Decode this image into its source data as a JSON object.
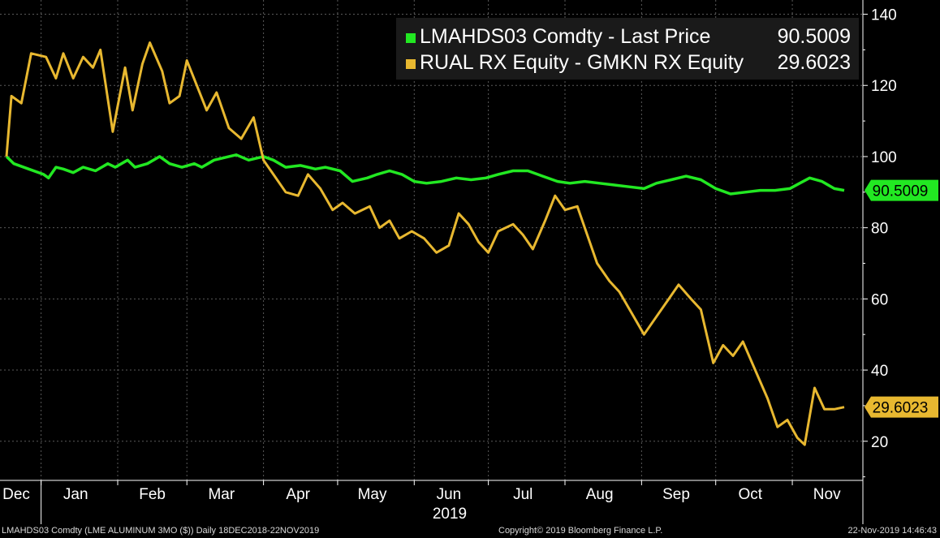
{
  "chart_data": {
    "type": "line",
    "xlabel": "",
    "ylabel": "",
    "ylim": [
      9,
      144
    ],
    "yticks": [
      20,
      40,
      60,
      80,
      100,
      120,
      140
    ],
    "x_range": [
      "2018-12-18",
      "2019-11-22"
    ],
    "year_label": "2019",
    "month_labels": [
      {
        "label": "Dec",
        "date": "2018-12-10"
      },
      {
        "label": "Jan",
        "date": "2019-01-15"
      },
      {
        "label": "Feb",
        "date": "2019-02-15"
      },
      {
        "label": "Mar",
        "date": "2019-03-15"
      },
      {
        "label": "Apr",
        "date": "2019-04-15"
      },
      {
        "label": "May",
        "date": "2019-05-15"
      },
      {
        "label": "Jun",
        "date": "2019-06-15"
      },
      {
        "label": "Jul",
        "date": "2019-07-15"
      },
      {
        "label": "Aug",
        "date": "2019-08-15"
      },
      {
        "label": "Sep",
        "date": "2019-09-15"
      },
      {
        "label": "Oct",
        "date": "2019-10-15"
      },
      {
        "label": "Nov",
        "date": "2019-11-15"
      }
    ],
    "grid": true,
    "legend_position": "top-right",
    "series": [
      {
        "name": "LMAHDS03 Comdty - Last Price",
        "last_value_label": "90.5009",
        "color": "#22e822",
        "points": [
          [
            "2018-12-18",
            100
          ],
          [
            "2018-12-21",
            98
          ],
          [
            "2018-12-27",
            96.5
          ],
          [
            "2019-01-02",
            95
          ],
          [
            "2019-01-04",
            94
          ],
          [
            "2019-01-07",
            97
          ],
          [
            "2019-01-10",
            96.5
          ],
          [
            "2019-01-14",
            95.5
          ],
          [
            "2019-01-18",
            97
          ],
          [
            "2019-01-23",
            96
          ],
          [
            "2019-01-28",
            98
          ],
          [
            "2019-01-31",
            97
          ],
          [
            "2019-02-05",
            99
          ],
          [
            "2019-02-08",
            97
          ],
          [
            "2019-02-13",
            98
          ],
          [
            "2019-02-18",
            100
          ],
          [
            "2019-02-22",
            98
          ],
          [
            "2019-02-27",
            97
          ],
          [
            "2019-03-04",
            98
          ],
          [
            "2019-03-07",
            97
          ],
          [
            "2019-03-12",
            99
          ],
          [
            "2019-03-18",
            100
          ],
          [
            "2019-03-21",
            100.5
          ],
          [
            "2019-03-26",
            99
          ],
          [
            "2019-04-01",
            100
          ],
          [
            "2019-04-05",
            99
          ],
          [
            "2019-04-10",
            97
          ],
          [
            "2019-04-16",
            97.5
          ],
          [
            "2019-04-22",
            96.5
          ],
          [
            "2019-04-26",
            97
          ],
          [
            "2019-05-02",
            96
          ],
          [
            "2019-05-07",
            93
          ],
          [
            "2019-05-13",
            94
          ],
          [
            "2019-05-17",
            95
          ],
          [
            "2019-05-22",
            96
          ],
          [
            "2019-05-27",
            95
          ],
          [
            "2019-06-01",
            93
          ],
          [
            "2019-06-06",
            92.5
          ],
          [
            "2019-06-12",
            93
          ],
          [
            "2019-06-18",
            94
          ],
          [
            "2019-06-24",
            93.5
          ],
          [
            "2019-06-30",
            94
          ],
          [
            "2019-07-05",
            95
          ],
          [
            "2019-07-11",
            96
          ],
          [
            "2019-07-17",
            96
          ],
          [
            "2019-07-23",
            94.5
          ],
          [
            "2019-07-29",
            93
          ],
          [
            "2019-08-03",
            92.5
          ],
          [
            "2019-08-09",
            93
          ],
          [
            "2019-08-15",
            92.5
          ],
          [
            "2019-08-21",
            92
          ],
          [
            "2019-08-27",
            91.5
          ],
          [
            "2019-09-02",
            91
          ],
          [
            "2019-09-07",
            92.5
          ],
          [
            "2019-09-13",
            93.5
          ],
          [
            "2019-09-19",
            94.5
          ],
          [
            "2019-09-25",
            93.5
          ],
          [
            "2019-10-01",
            91
          ],
          [
            "2019-10-07",
            89.5
          ],
          [
            "2019-10-13",
            90
          ],
          [
            "2019-10-19",
            90.5
          ],
          [
            "2019-10-25",
            90.5
          ],
          [
            "2019-10-31",
            91
          ],
          [
            "2019-11-04",
            92.5
          ],
          [
            "2019-11-08",
            94
          ],
          [
            "2019-11-13",
            93
          ],
          [
            "2019-11-18",
            91
          ],
          [
            "2019-11-22",
            90.5
          ]
        ]
      },
      {
        "name": "RUAL RX Equity - GMKN RX Equity",
        "last_value_label": "29.6023",
        "color": "#e8b830",
        "points": [
          [
            "2018-12-18",
            100
          ],
          [
            "2018-12-20",
            117
          ],
          [
            "2018-12-24",
            115
          ],
          [
            "2018-12-28",
            129
          ],
          [
            "2019-01-03",
            128
          ],
          [
            "2019-01-07",
            122
          ],
          [
            "2019-01-10",
            129
          ],
          [
            "2019-01-14",
            122
          ],
          [
            "2019-01-18",
            128
          ],
          [
            "2019-01-22",
            125
          ],
          [
            "2019-01-25",
            130
          ],
          [
            "2019-01-30",
            107
          ],
          [
            "2019-02-04",
            125
          ],
          [
            "2019-02-07",
            113
          ],
          [
            "2019-02-11",
            126
          ],
          [
            "2019-02-14",
            132
          ],
          [
            "2019-02-19",
            124
          ],
          [
            "2019-02-22",
            115
          ],
          [
            "2019-02-26",
            117
          ],
          [
            "2019-03-01",
            127
          ],
          [
            "2019-03-05",
            120
          ],
          [
            "2019-03-09",
            113
          ],
          [
            "2019-03-13",
            118
          ],
          [
            "2019-03-18",
            108
          ],
          [
            "2019-03-23",
            105
          ],
          [
            "2019-03-28",
            111
          ],
          [
            "2019-04-01",
            99
          ],
          [
            "2019-04-05",
            95
          ],
          [
            "2019-04-10",
            90
          ],
          [
            "2019-04-15",
            89
          ],
          [
            "2019-04-19",
            95
          ],
          [
            "2019-04-24",
            91
          ],
          [
            "2019-04-29",
            85
          ],
          [
            "2019-05-03",
            87
          ],
          [
            "2019-05-08",
            84
          ],
          [
            "2019-05-14",
            86
          ],
          [
            "2019-05-18",
            80
          ],
          [
            "2019-05-22",
            82
          ],
          [
            "2019-05-26",
            77
          ],
          [
            "2019-05-31",
            79
          ],
          [
            "2019-06-05",
            77
          ],
          [
            "2019-06-10",
            73
          ],
          [
            "2019-06-15",
            75
          ],
          [
            "2019-06-19",
            84
          ],
          [
            "2019-06-23",
            81
          ],
          [
            "2019-06-27",
            76
          ],
          [
            "2019-07-01",
            73
          ],
          [
            "2019-07-05",
            79
          ],
          [
            "2019-07-11",
            81
          ],
          [
            "2019-07-15",
            78
          ],
          [
            "2019-07-19",
            74
          ],
          [
            "2019-07-24",
            82
          ],
          [
            "2019-07-28",
            89
          ],
          [
            "2019-08-01",
            85
          ],
          [
            "2019-08-06",
            86
          ],
          [
            "2019-08-10",
            78
          ],
          [
            "2019-08-14",
            70
          ],
          [
            "2019-08-19",
            65
          ],
          [
            "2019-08-23",
            62
          ],
          [
            "2019-08-28",
            56
          ],
          [
            "2019-09-02",
            50
          ],
          [
            "2019-09-07",
            55
          ],
          [
            "2019-09-12",
            60
          ],
          [
            "2019-09-16",
            64
          ],
          [
            "2019-09-21",
            60
          ],
          [
            "2019-09-25",
            57
          ],
          [
            "2019-09-30",
            42
          ],
          [
            "2019-10-04",
            47
          ],
          [
            "2019-10-08",
            44
          ],
          [
            "2019-10-12",
            48
          ],
          [
            "2019-10-17",
            40
          ],
          [
            "2019-10-22",
            32
          ],
          [
            "2019-10-26",
            24
          ],
          [
            "2019-10-30",
            26
          ],
          [
            "2019-11-03",
            21
          ],
          [
            "2019-11-06",
            19
          ],
          [
            "2019-11-10",
            35
          ],
          [
            "2019-11-14",
            29
          ],
          [
            "2019-11-18",
            29
          ],
          [
            "2019-11-22",
            29.6
          ]
        ]
      }
    ]
  },
  "footer": {
    "left": "LMAHDS03 Comdty (LME ALUMINUM 3MO ($)) Daily 18DEC2018-22NOV2019",
    "middle": "Copyright© 2019 Bloomberg Finance L.P.",
    "right": "22-Nov-2019 14:46:43"
  }
}
